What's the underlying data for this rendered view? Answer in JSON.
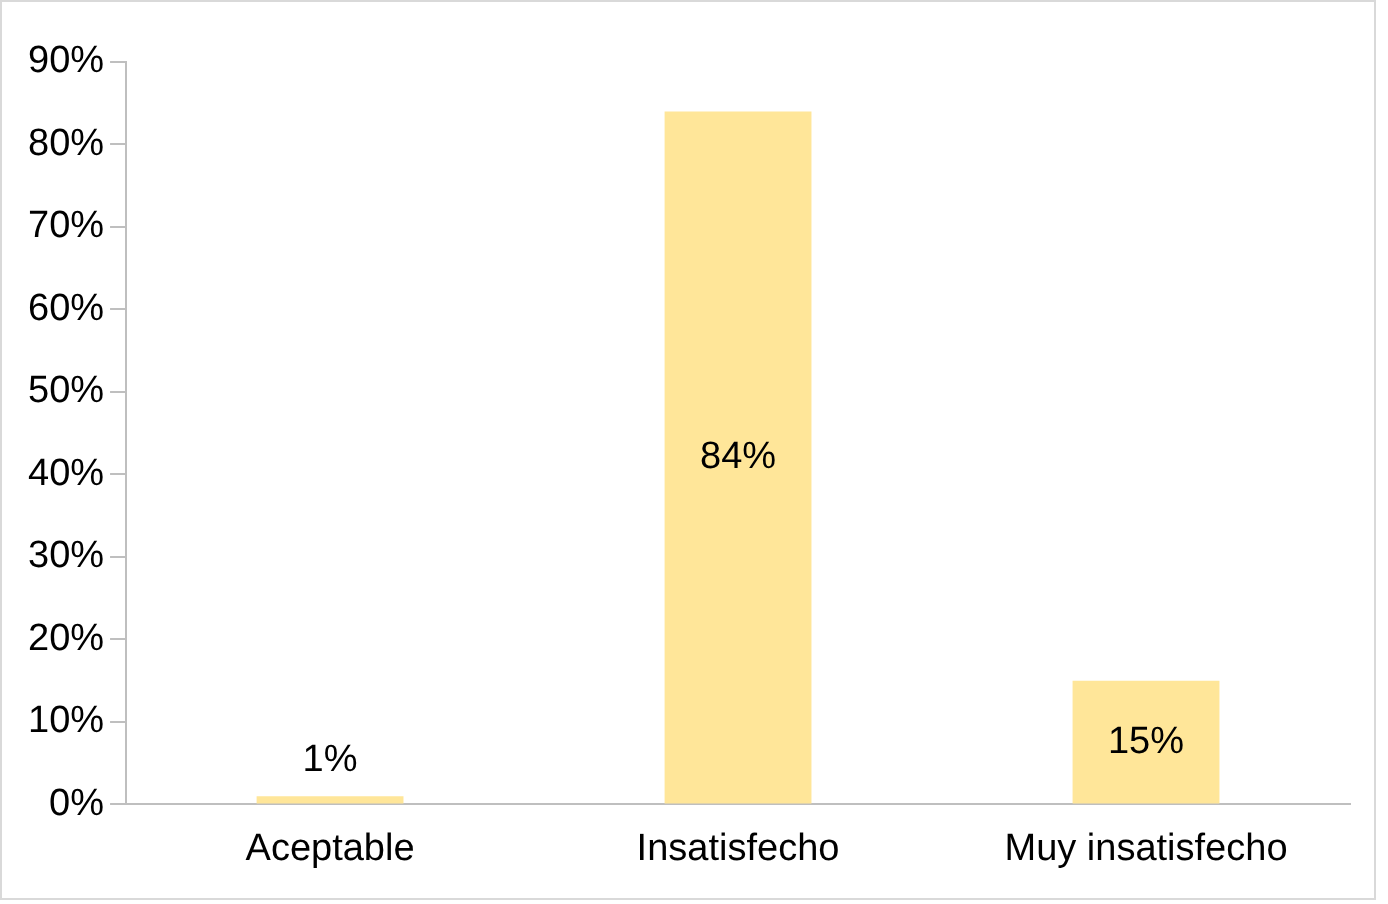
{
  "chart_data": {
    "type": "bar",
    "categories": [
      "Aceptable",
      "Insatisfecho",
      "Muy insatisfecho"
    ],
    "values": [
      1,
      84,
      15
    ],
    "value_labels": [
      "1%",
      "84%",
      "15%"
    ],
    "color": "#ffe699",
    "ylim": [
      0,
      90
    ],
    "yticks": [
      {
        "value": 0,
        "label": "0%"
      },
      {
        "value": 10,
        "label": "10%"
      },
      {
        "value": 20,
        "label": "20%"
      },
      {
        "value": 30,
        "label": "30%"
      },
      {
        "value": 40,
        "label": "40%"
      },
      {
        "value": 50,
        "label": "50%"
      },
      {
        "value": 60,
        "label": "60%"
      },
      {
        "value": 70,
        "label": "70%"
      },
      {
        "value": 80,
        "label": "80%"
      },
      {
        "value": 90,
        "label": "90%"
      }
    ],
    "grid": false,
    "legend": false
  }
}
